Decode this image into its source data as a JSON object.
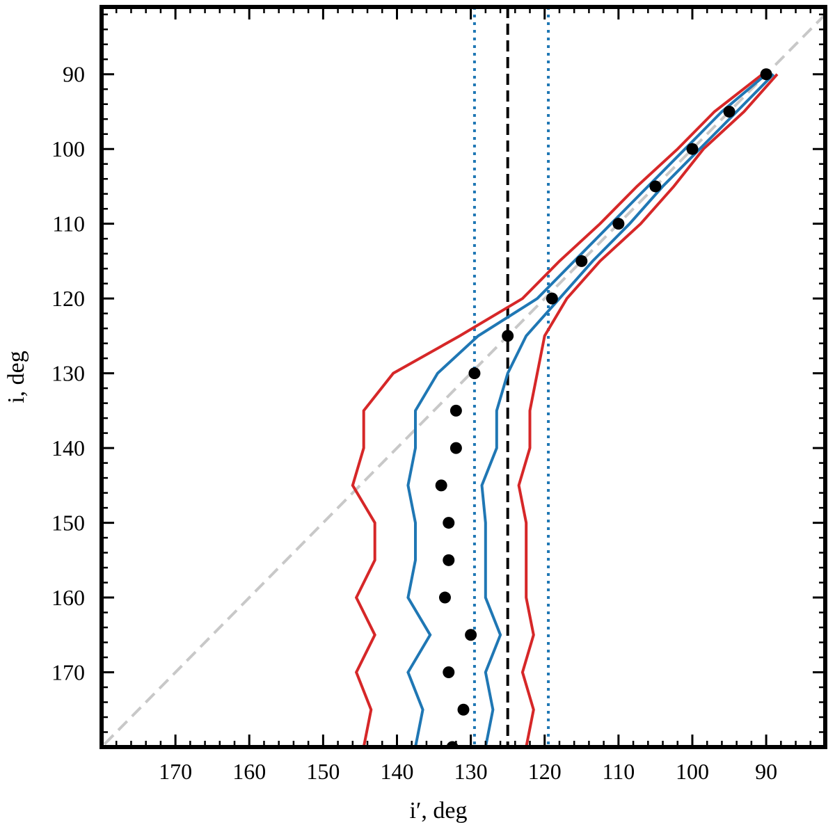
{
  "chart_data": {
    "type": "line",
    "xlabel": "i′, deg",
    "ylabel": "i, deg",
    "x_axis_reversed": true,
    "y_axis_reversed": true,
    "xlim": [
      180,
      82
    ],
    "ylim": [
      81,
      180
    ],
    "x_ticks": [
      170,
      160,
      150,
      140,
      130,
      120,
      110,
      100,
      90
    ],
    "y_ticks": [
      90,
      100,
      110,
      120,
      130,
      140,
      150,
      160,
      170
    ],
    "grid": false,
    "legend": "none",
    "colors": {
      "points": "#000000",
      "blue": "#1f77b4",
      "red": "#d62728",
      "identity": "#c8c8c8",
      "vline": "#000000"
    },
    "points": {
      "i": [
        90,
        95,
        100,
        105,
        110,
        115,
        120,
        125,
        130,
        135,
        140,
        145,
        150,
        155,
        160,
        165,
        170,
        175,
        180
      ],
      "i_prime": [
        90,
        95,
        100,
        105,
        110,
        115,
        119,
        125,
        129.5,
        132,
        132,
        134,
        133,
        133,
        133.5,
        130,
        133,
        131,
        132.5
      ]
    },
    "blue_band": {
      "i": [
        90,
        95,
        100,
        105,
        110,
        115,
        120,
        125,
        130,
        135,
        140,
        145,
        150,
        155,
        160,
        165,
        170,
        175,
        180
      ],
      "left": [
        90,
        96,
        101,
        106,
        111,
        116,
        121,
        129,
        134.5,
        137.5,
        137.5,
        138.5,
        137.5,
        137.5,
        138.5,
        135.5,
        138.5,
        136.5,
        137.5
      ],
      "right": [
        89,
        94,
        99,
        104,
        108.5,
        113.5,
        118,
        122.5,
        125,
        126.5,
        126.5,
        128.5,
        128,
        128,
        128,
        126,
        128,
        127,
        128
      ]
    },
    "red_band": {
      "i": [
        90,
        95,
        100,
        105,
        110,
        115,
        120,
        125,
        130,
        135,
        140,
        145,
        150,
        155,
        160,
        165,
        170,
        175,
        180
      ],
      "left": [
        90.5,
        97,
        102,
        107.5,
        112.5,
        118,
        123,
        131.5,
        140.5,
        144.5,
        144.5,
        146,
        143,
        143,
        145.5,
        143,
        145.5,
        143.5,
        144.5
      ],
      "right": [
        88.5,
        93,
        98.5,
        102.5,
        107,
        112.5,
        117,
        120,
        121,
        122,
        122,
        123.5,
        122.5,
        122.5,
        122.5,
        121.5,
        123,
        121.5,
        122.5
      ]
    },
    "vertical_lines": {
      "dashed": [
        125
      ],
      "dotted": [
        129.5,
        119.5
      ]
    },
    "identity_line": [
      [
        82,
        82
      ],
      [
        180,
        180
      ]
    ]
  }
}
